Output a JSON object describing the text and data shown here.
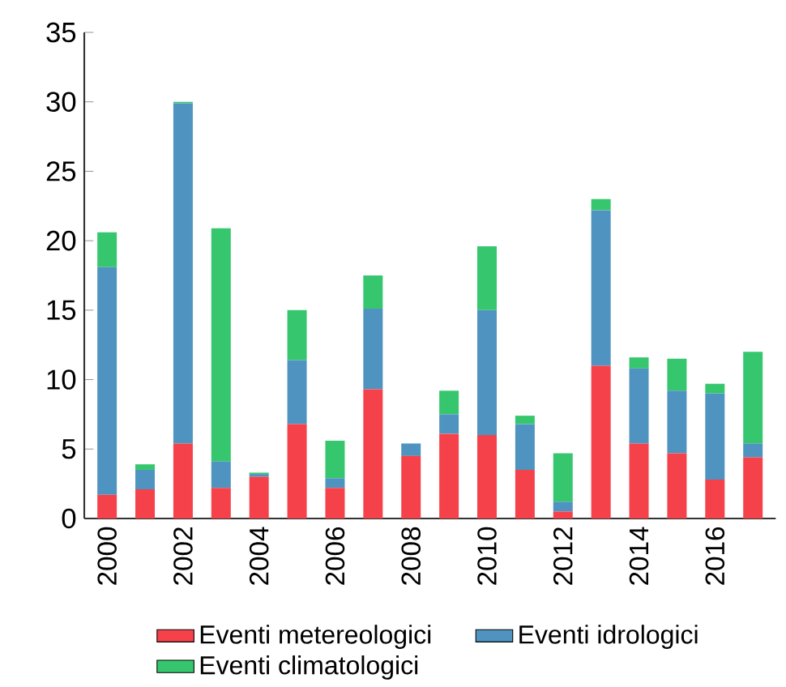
{
  "chart_data": {
    "type": "bar",
    "stacked": true,
    "categories": [
      "2000",
      null,
      "2002",
      null,
      "2004",
      null,
      "2006",
      null,
      "2008",
      null,
      "2010",
      null,
      "2012",
      null,
      "2014",
      null,
      "2016",
      null
    ],
    "series": [
      {
        "name": "Eventi metereologici",
        "color": "#f5414a",
        "values": [
          1.7,
          2.1,
          5.4,
          2.2,
          3.0,
          6.8,
          2.2,
          9.3,
          4.5,
          6.1,
          6.0,
          3.5,
          0.5,
          11.0,
          5.4,
          4.7,
          2.8,
          4.4
        ]
      },
      {
        "name": "Eventi idrologici",
        "color": "#4f94c0",
        "values": [
          16.4,
          1.4,
          24.5,
          1.9,
          0.2,
          4.6,
          0.7,
          5.8,
          0.9,
          1.4,
          9.0,
          3.3,
          0.7,
          11.2,
          5.4,
          4.5,
          6.2,
          1.0
        ]
      },
      {
        "name": "Eventi climatologici",
        "color": "#36c76e",
        "values": [
          2.5,
          0.4,
          0.1,
          16.8,
          0.1,
          3.6,
          2.7,
          2.4,
          0.0,
          1.7,
          4.6,
          0.6,
          3.5,
          0.8,
          0.8,
          2.3,
          0.7,
          6.6
        ]
      }
    ],
    "ylim": [
      0,
      35
    ],
    "yticks": [
      0,
      5,
      10,
      15,
      20,
      25,
      30,
      35
    ],
    "grid": false,
    "legend": "bottom"
  }
}
